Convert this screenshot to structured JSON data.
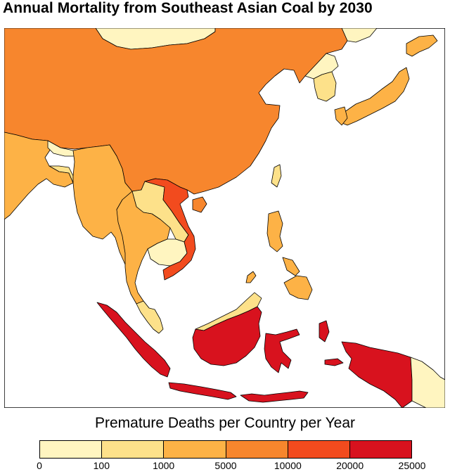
{
  "title": "Annual Mortality from Southeast Asian Coal by 2030",
  "legend": {
    "title": "Premature Deaths per Country per Year",
    "bins": [
      {
        "range": "0–100",
        "color": "#fff5c0"
      },
      {
        "range": "100–1000",
        "color": "#fde18a"
      },
      {
        "range": "1000–5000",
        "color": "#fdb246"
      },
      {
        "range": "5000–10000",
        "color": "#f7862d"
      },
      {
        "range": "10000–20000",
        "color": "#f24b1e"
      },
      {
        "range": "20000–25000",
        "color": "#d8121e"
      }
    ],
    "ticks": [
      "0",
      "100",
      "1000",
      "5000",
      "10000",
      "20000",
      "25000"
    ]
  },
  "regions": [
    {
      "name": "China",
      "bin": 3
    },
    {
      "name": "Mongolia",
      "bin": 0
    },
    {
      "name": "India",
      "bin": 2
    },
    {
      "name": "Nepal",
      "bin": 0
    },
    {
      "name": "Bangladesh",
      "bin": 1
    },
    {
      "name": "Myanmar",
      "bin": 2
    },
    {
      "name": "Laos",
      "bin": 1
    },
    {
      "name": "Thailand",
      "bin": 2
    },
    {
      "name": "Cambodia",
      "bin": 0
    },
    {
      "name": "Vietnam",
      "bin": 4
    },
    {
      "name": "Malaysia",
      "bin": 1
    },
    {
      "name": "Indonesia",
      "bin": 5
    },
    {
      "name": "Philippines",
      "bin": 2
    },
    {
      "name": "Taiwan",
      "bin": 1
    },
    {
      "name": "South Korea",
      "bin": 1
    },
    {
      "name": "North Korea",
      "bin": 0
    },
    {
      "name": "Japan",
      "bin": 2
    },
    {
      "name": "Papua New Guinea",
      "bin": 0
    }
  ]
}
